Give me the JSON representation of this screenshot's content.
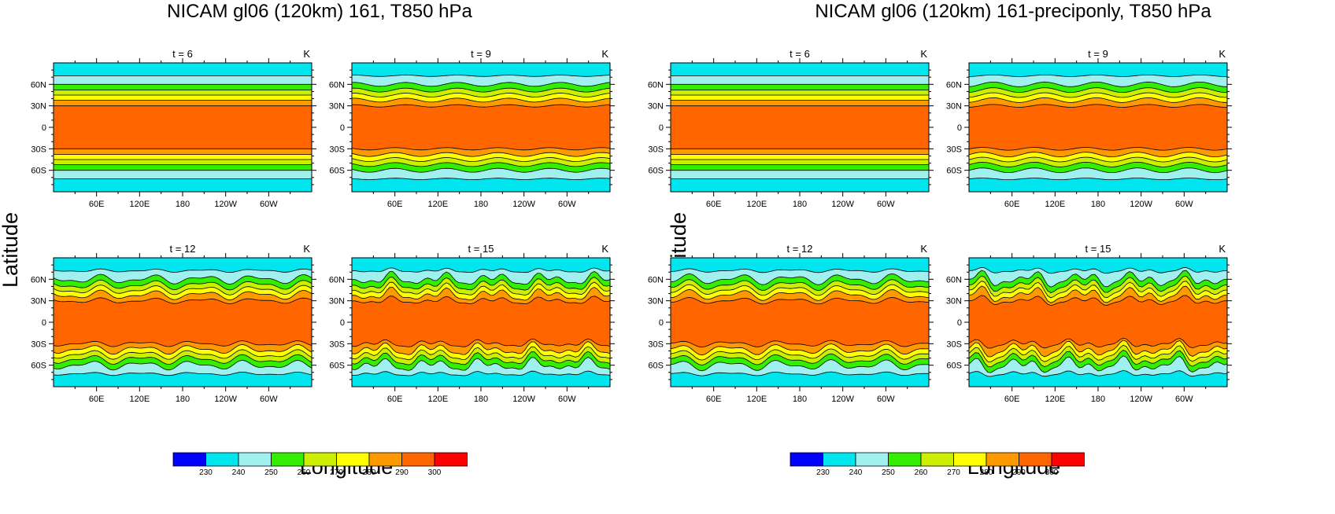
{
  "chart_data": [
    {
      "type": "contour",
      "title": "NICAM gl06 (120km) 161, T850 hPa",
      "xlabel": "Longitude",
      "ylabel": "Latitude",
      "units": "K",
      "x_ticks": [
        "60E",
        "120E",
        "180",
        "120W",
        "60W"
      ],
      "y_ticks": [
        "60N",
        "30N",
        "0",
        "30S",
        "60S"
      ],
      "xlim": [
        0,
        360
      ],
      "ylim": [
        -90,
        90
      ],
      "panels": [
        {
          "title": "t = 6",
          "units": "K",
          "time": 6,
          "wave_amplitude": 0,
          "wave_components": 0
        },
        {
          "title": "t = 9",
          "units": "K",
          "time": 9,
          "wave_amplitude": 0.5,
          "wave_components": 1
        },
        {
          "title": "t = 12",
          "units": "K",
          "time": 12,
          "wave_amplitude": 0.8,
          "wave_components": 2
        },
        {
          "title": "t = 15",
          "units": "K",
          "time": 15,
          "wave_amplitude": 1.0,
          "wave_components": 3
        }
      ]
    },
    {
      "type": "contour",
      "title": "NICAM gl06 (120km) 161-preciponly, T850 hPa",
      "xlabel": "Longitude",
      "ylabel": "Latitude",
      "units": "K",
      "x_ticks": [
        "60E",
        "120E",
        "180",
        "120W",
        "60W"
      ],
      "y_ticks": [
        "60N",
        "30N",
        "0",
        "30S",
        "60S"
      ],
      "xlim": [
        0,
        360
      ],
      "ylim": [
        -90,
        90
      ],
      "panels": [
        {
          "title": "t = 6",
          "units": "K",
          "time": 6,
          "wave_amplitude": 0,
          "wave_components": 0
        },
        {
          "title": "t = 9",
          "units": "K",
          "time": 9,
          "wave_amplitude": 0.6,
          "wave_components": 1
        },
        {
          "title": "t = 12",
          "units": "K",
          "time": 12,
          "wave_amplitude": 0.9,
          "wave_components": 2
        },
        {
          "title": "t = 15",
          "units": "K",
          "time": 15,
          "wave_amplitude": 1.2,
          "wave_components": 3
        }
      ]
    }
  ],
  "colorbar": {
    "levels": [
      "230",
      "240",
      "250",
      "260",
      "270",
      "280",
      "290",
      "300"
    ],
    "colors": [
      "#0000ff",
      "#00e5ee",
      "#a0f0f0",
      "#33ee00",
      "#ccee00",
      "#ffff00",
      "#ff9900",
      "#ff6600",
      "#ff0000"
    ]
  },
  "band_edges_lat": [
    72,
    60,
    52,
    45,
    38,
    30
  ],
  "band_colors": [
    "#00e5ee",
    "#a0f0f0",
    "#33ee00",
    "#ccee00",
    "#ffff00",
    "#ff9900",
    "#ff6600"
  ],
  "background_color": "#00e5ee"
}
